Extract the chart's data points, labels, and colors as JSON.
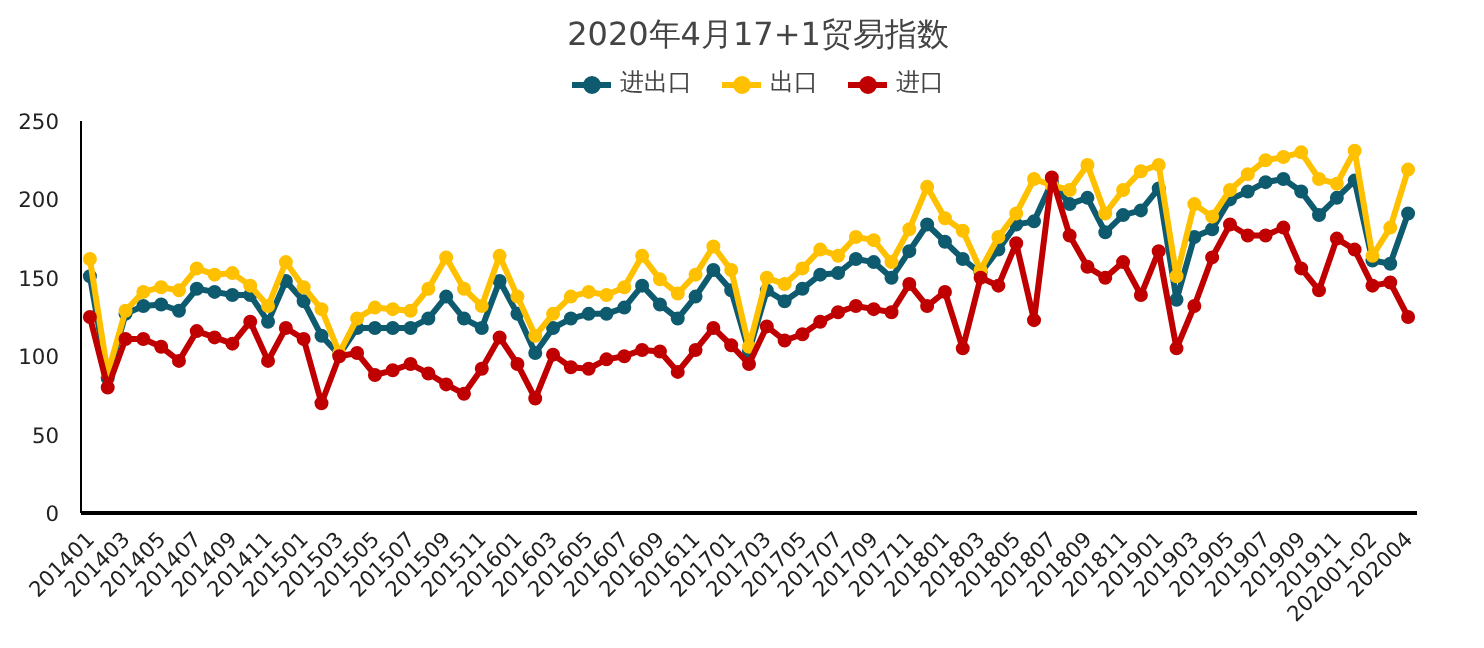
{
  "chart_data": {
    "type": "line",
    "title": "2020年4月17+1贸易指数",
    "categories": [
      "201401",
      null,
      "201403",
      null,
      "201405",
      null,
      "201407",
      null,
      "201409",
      null,
      "201411",
      null,
      "201501",
      null,
      "201503",
      null,
      "201505",
      null,
      "201507",
      null,
      "201509",
      null,
      "201511",
      null,
      "201601",
      null,
      "201603",
      null,
      "201605",
      null,
      "201607",
      null,
      "201609",
      null,
      "201611",
      null,
      "201701",
      null,
      "201703",
      null,
      "201705",
      null,
      "201707",
      null,
      "201709",
      null,
      "201711",
      null,
      "201801",
      null,
      "201803",
      null,
      "201805",
      null,
      "201807",
      null,
      "201809",
      null,
      "201811",
      null,
      "201901",
      null,
      "201903",
      null,
      "201905",
      null,
      "201907",
      null,
      "201909",
      null,
      "201911",
      null,
      "202001-02",
      null,
      "202004"
    ],
    "series": [
      {
        "name": "进出口",
        "color": "#0e5a6e",
        "values": [
          151,
          86,
          127,
          132,
          133,
          129,
          143,
          141,
          139,
          139,
          122,
          148,
          135,
          113,
          101,
          118,
          118,
          118,
          118,
          124,
          138,
          124,
          118,
          148,
          127,
          102,
          118,
          124,
          127,
          127,
          131,
          145,
          133,
          124,
          138,
          155,
          142,
          103,
          142,
          135,
          143,
          152,
          153,
          162,
          160,
          150,
          167,
          184,
          173,
          162,
          153,
          168,
          184,
          186,
          211,
          197,
          201,
          179,
          190,
          193,
          207,
          136,
          176,
          181,
          200,
          205,
          211,
          213,
          205,
          190,
          201,
          212,
          161,
          159,
          191
        ]
      },
      {
        "name": "出口",
        "color": "#ffc000",
        "values": [
          162,
          89,
          129,
          141,
          144,
          142,
          156,
          152,
          153,
          145,
          132,
          160,
          144,
          130,
          102,
          124,
          131,
          130,
          129,
          143,
          163,
          143,
          132,
          164,
          138,
          113,
          127,
          138,
          141,
          139,
          144,
          164,
          149,
          140,
          152,
          170,
          155,
          106,
          150,
          146,
          156,
          168,
          164,
          176,
          174,
          160,
          181,
          208,
          188,
          180,
          155,
          176,
          191,
          213,
          209,
          206,
          222,
          191,
          206,
          218,
          222,
          151,
          197,
          189,
          206,
          216,
          225,
          227,
          230,
          213,
          210,
          231,
          164,
          182,
          219
        ]
      },
      {
        "name": "进口",
        "color": "#c00000",
        "values": [
          125,
          80,
          111,
          111,
          106,
          97,
          116,
          112,
          108,
          122,
          97,
          118,
          111,
          70,
          100,
          102,
          88,
          91,
          95,
          89,
          82,
          76,
          92,
          112,
          95,
          73,
          101,
          93,
          92,
          98,
          100,
          104,
          103,
          90,
          104,
          118,
          107,
          95,
          119,
          110,
          114,
          122,
          128,
          132,
          130,
          128,
          146,
          132,
          141,
          105,
          150,
          145,
          172,
          123,
          214,
          177,
          157,
          150,
          160,
          139,
          167,
          105,
          132,
          163,
          184,
          177,
          177,
          182,
          156,
          142,
          175,
          168,
          145,
          147,
          125
        ]
      }
    ],
    "ylim": [
      0,
      250
    ],
    "yticks": [
      0,
      50,
      100,
      150,
      200,
      250
    ],
    "legend": "top",
    "marker": "circle",
    "line_style": "solid"
  }
}
